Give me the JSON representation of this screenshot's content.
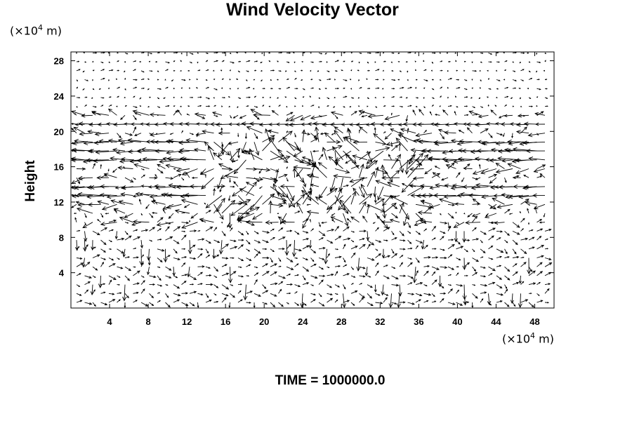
{
  "chart_data": {
    "type": "vector",
    "title": "Wind Velocity Vector",
    "ylabel": "Height",
    "x_unit": {
      "prefix": "(×10",
      "exp": "4",
      "suffix": " m)"
    },
    "y_unit": {
      "prefix": "(×10",
      "exp": "4",
      "suffix": " m)"
    },
    "xlim": [
      0,
      50
    ],
    "ylim": [
      0,
      29
    ],
    "xticks": [
      4,
      8,
      12,
      16,
      20,
      24,
      28,
      32,
      36,
      40,
      44,
      48
    ],
    "yticks": [
      4,
      8,
      12,
      16,
      20,
      24,
      28
    ],
    "grid": false
  },
  "footer": {
    "time_label": "TIME = 1000000.0"
  }
}
